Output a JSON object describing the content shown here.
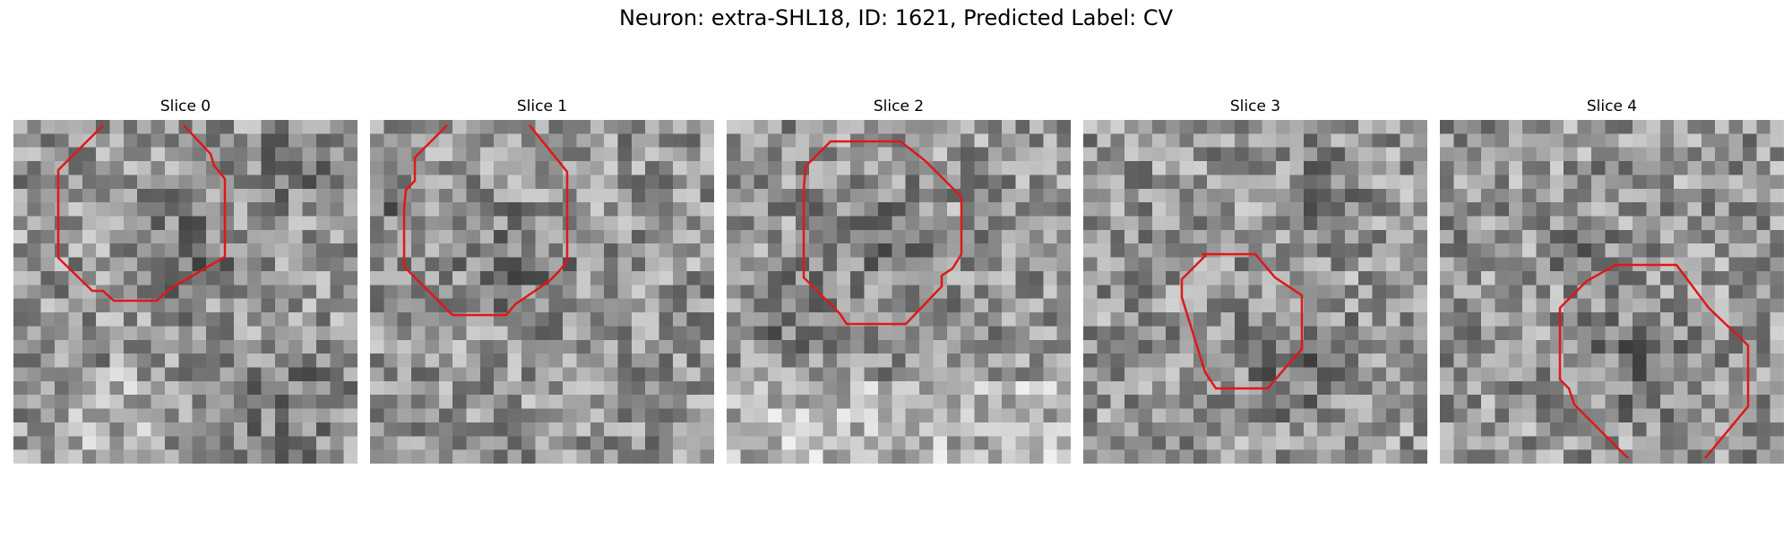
{
  "figure": {
    "title": "Neuron: extra-SHL18, ID: 1621, Predicted Label: CV",
    "contour_color": "#e01818"
  },
  "panels": [
    {
      "title": "Slice 0"
    },
    {
      "title": "Slice 1"
    },
    {
      "title": "Slice 2"
    },
    {
      "title": "Slice 3"
    },
    {
      "title": "Slice 4"
    }
  ]
}
